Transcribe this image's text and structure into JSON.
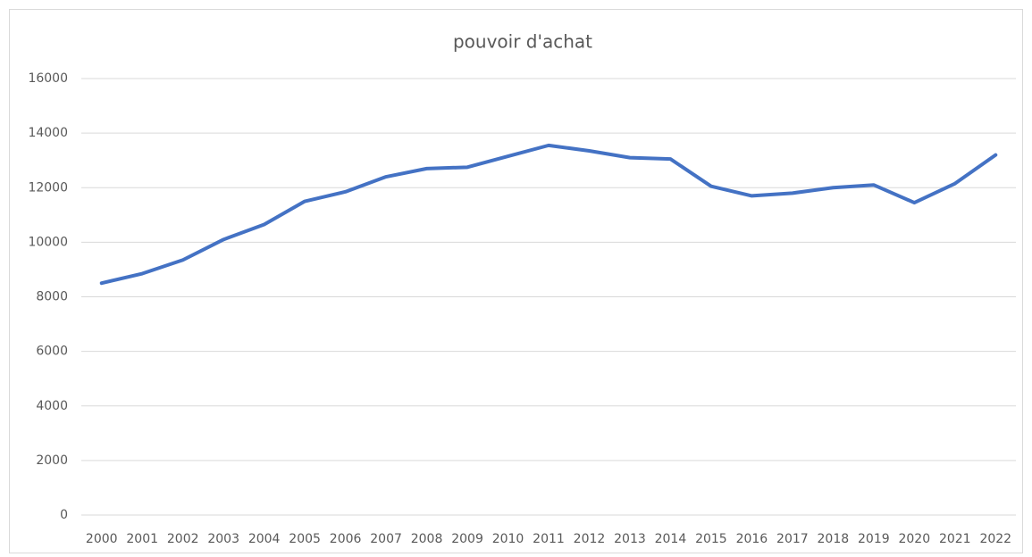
{
  "chart_data": {
    "type": "line",
    "title": "pouvoir d'achat",
    "categories": [
      "2000",
      "2001",
      "2002",
      "2003",
      "2004",
      "2005",
      "2006",
      "2007",
      "2008",
      "2009",
      "2010",
      "2011",
      "2012",
      "2013",
      "2014",
      "2015",
      "2016",
      "2017",
      "2018",
      "2019",
      "2020",
      "2021",
      "2022"
    ],
    "series": [
      {
        "name": "pouvoir d'achat",
        "color": "#4472c4",
        "values": [
          8500,
          8850,
          9350,
          10100,
          10650,
          11500,
          11850,
          12400,
          12700,
          12750,
          13150,
          13550,
          13350,
          13100,
          13050,
          12050,
          11700,
          11800,
          12000,
          12100,
          11450,
          12150,
          13200
        ]
      }
    ],
    "ylim": [
      0,
      16000
    ],
    "yticks": [
      0,
      2000,
      4000,
      6000,
      8000,
      10000,
      12000,
      14000,
      16000
    ],
    "grid": true
  }
}
